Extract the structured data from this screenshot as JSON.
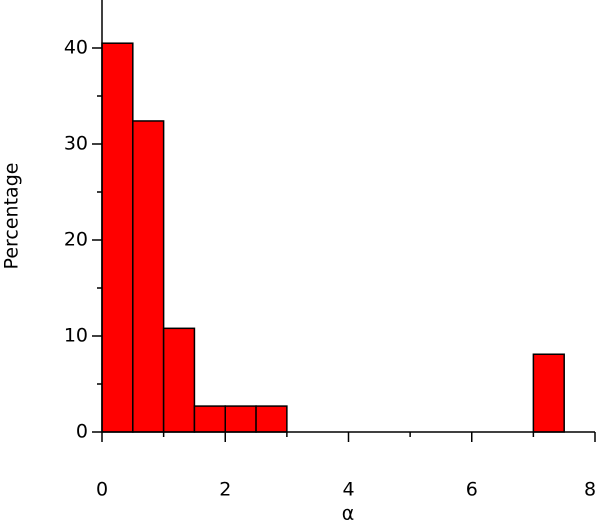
{
  "chart_data": {
    "type": "histogram",
    "xlabel": "α",
    "ylabel": "Percentage",
    "bins": [
      0,
      0.5,
      1,
      1.5,
      2,
      2.5,
      3,
      3.5,
      4,
      4.5,
      5,
      5.5,
      6,
      6.5,
      7,
      7.5
    ],
    "values": [
      40.5,
      32.4,
      10.8,
      2.7,
      2.7,
      2.7,
      0,
      0,
      0,
      0,
      0,
      0,
      0,
      0,
      8.1
    ],
    "color": "#ff0000",
    "xlim": [
      0,
      8
    ],
    "xticks": [
      0,
      2,
      4,
      6,
      8
    ],
    "xminorticks": [
      1,
      3,
      5,
      7
    ],
    "ylim": [
      0,
      45
    ],
    "yticks": [
      0,
      10,
      20,
      30,
      40
    ],
    "yminorticks": [
      5,
      15,
      25,
      35
    ],
    "grid": false
  }
}
